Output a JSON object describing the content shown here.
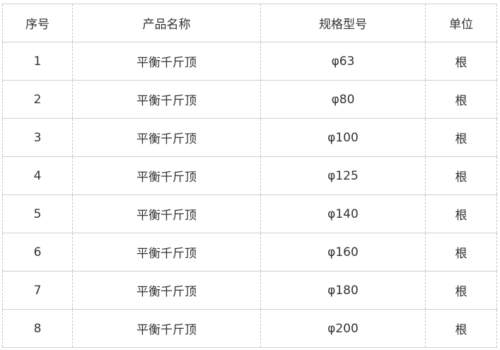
{
  "headers": [
    "序号",
    "产品名称",
    "规格型号",
    "单位"
  ],
  "rows": [
    [
      "1",
      "平衡千斤顶",
      "φ63",
      "根"
    ],
    [
      "2",
      "平衡千斤顶",
      "φ80",
      "根"
    ],
    [
      "3",
      "平衡千斤顶",
      "φ100",
      "根"
    ],
    [
      "4",
      "平衡千斤顶",
      "φ125",
      "根"
    ],
    [
      "5",
      "平衡千斤顶",
      "φ140",
      "根"
    ],
    [
      "6",
      "平衡千斤顶",
      "φ160",
      "根"
    ],
    [
      "7",
      "平衡千斤顶",
      "φ180",
      "根"
    ],
    [
      "8",
      "平衡千斤顶",
      "φ200",
      "根"
    ]
  ]
}
